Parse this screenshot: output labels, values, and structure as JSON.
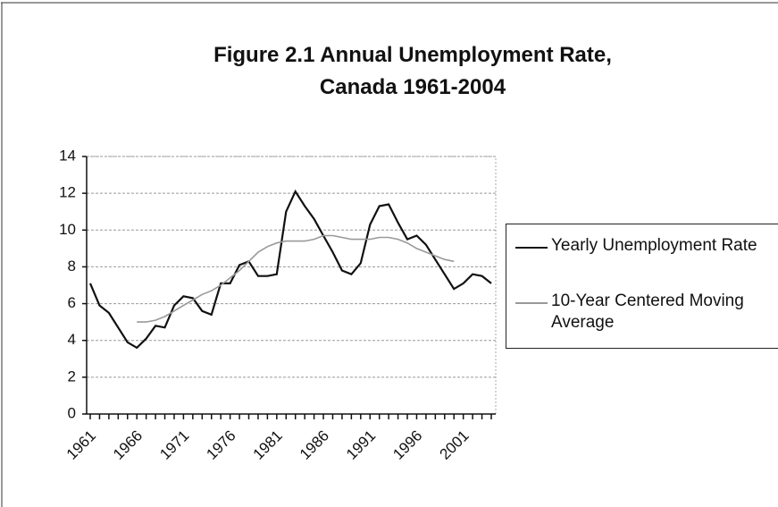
{
  "chart_data": {
    "type": "line",
    "title": "Figure 2.1 Annual Unemployment Rate, Canada 1961-2004",
    "categories": [
      "1961",
      null,
      null,
      null,
      null,
      "1966",
      null,
      null,
      null,
      null,
      "1971",
      null,
      null,
      null,
      null,
      "1976",
      null,
      null,
      null,
      null,
      "1981",
      null,
      null,
      null,
      null,
      "1986",
      null,
      null,
      null,
      null,
      "1991",
      null,
      null,
      null,
      null,
      "1996",
      null,
      null,
      null,
      null,
      "2001",
      null,
      null,
      null
    ],
    "series": [
      {
        "name": "Yearly Unemployment Rate",
        "color": "#111111",
        "values": [
          7.1,
          5.9,
          5.5,
          4.7,
          3.9,
          3.6,
          4.1,
          4.8,
          4.7,
          5.9,
          6.4,
          6.3,
          5.6,
          5.4,
          7.1,
          7.1,
          8.1,
          8.3,
          7.5,
          7.5,
          7.6,
          11.0,
          12.1,
          11.3,
          10.6,
          9.7,
          8.8,
          7.8,
          7.6,
          8.2,
          10.3,
          11.3,
          11.4,
          10.4,
          9.5,
          9.7,
          9.2,
          8.4,
          7.6,
          6.8,
          7.1,
          7.6,
          7.5,
          7.1
        ]
      },
      {
        "name": "10-Year Centered Moving Average",
        "color": "#999999",
        "values": [
          null,
          null,
          null,
          null,
          null,
          5.0,
          5.0,
          5.1,
          5.3,
          5.6,
          5.9,
          6.2,
          6.5,
          6.7,
          7.0,
          7.4,
          7.8,
          8.3,
          8.8,
          9.1,
          9.3,
          9.4,
          9.4,
          9.4,
          9.5,
          9.7,
          9.7,
          9.6,
          9.5,
          9.5,
          9.5,
          9.6,
          9.6,
          9.5,
          9.3,
          9.0,
          8.8,
          8.6,
          8.4,
          8.3,
          null,
          null,
          null,
          null
        ]
      }
    ],
    "ylim": [
      0,
      14
    ],
    "yticks": [
      0,
      2,
      4,
      6,
      8,
      10,
      12,
      14
    ],
    "grid": true
  }
}
